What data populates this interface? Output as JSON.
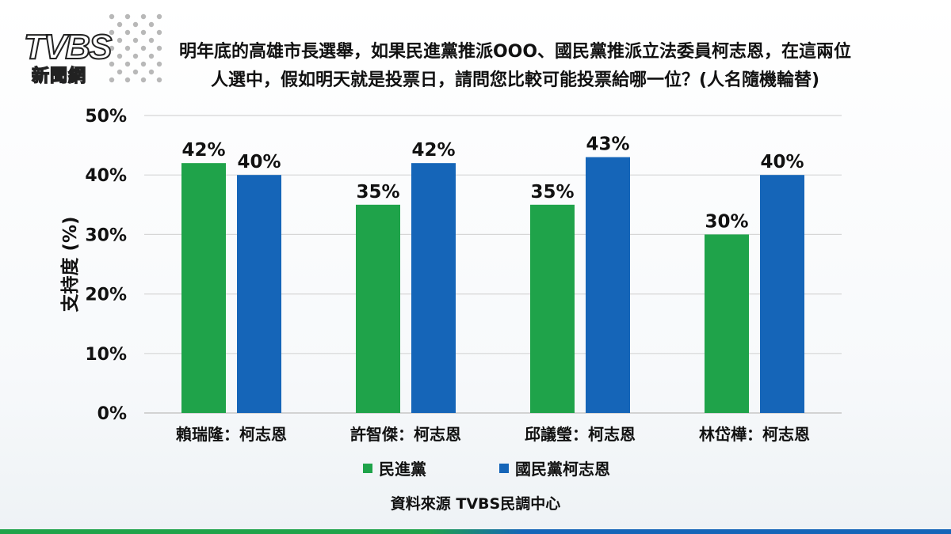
{
  "logo": {
    "text": "TVBS",
    "subtext": "新聞網"
  },
  "title_lines": [
    "明年底的高雄市長選舉，如果民進黨推派OOO、國民黨推派立法委員柯志恩，在這兩位",
    "人選中，假如明天就是投票日，請問您比較可能投票給哪一位？(人名隨機輪替)"
  ],
  "source": "資料來源 TVBS民調中心",
  "colors": {
    "dpp": "#1fa34a",
    "kmt": "#1565b8",
    "grid": "#d6d6d6"
  },
  "chart_data": {
    "type": "bar",
    "title": "明年底的高雄市長選舉，如果民進黨推派OOO、國民黨推派立法委員柯志恩，在這兩位人選中，假如明天就是投票日，請問您比較可能投票給哪一位？(人名隨機輪替)",
    "categories": [
      "賴瑞隆：柯志恩",
      "許智傑：柯志恩",
      "邱議瑩：柯志恩",
      "林岱樺：柯志恩"
    ],
    "series": [
      {
        "name": "民進黨",
        "values": [
          42,
          35,
          35,
          30
        ],
        "labels": [
          "42%",
          "35%",
          "35%",
          "30%"
        ]
      },
      {
        "name": "國民黨柯志恩",
        "values": [
          40,
          42,
          43,
          40
        ],
        "labels": [
          "40%",
          "42%",
          "43%",
          "40%"
        ]
      }
    ],
    "ylabel": "支持度 (%)",
    "xlabel": "",
    "ylim": [
      0,
      50
    ],
    "yticks": [
      0,
      10,
      20,
      30,
      40,
      50
    ],
    "ytick_labels": [
      "0%",
      "10%",
      "20%",
      "30%",
      "40%",
      "50%"
    ],
    "grid": true,
    "legend": "bottom"
  }
}
